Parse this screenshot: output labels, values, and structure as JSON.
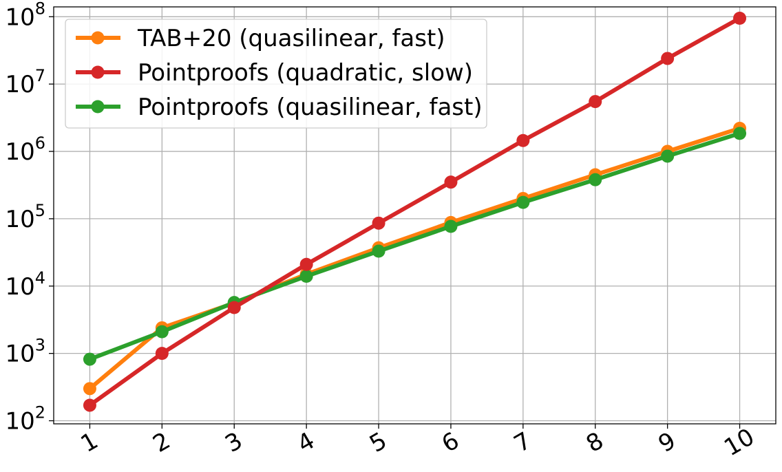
{
  "chart_data": {
    "type": "line",
    "title": "",
    "xlabel": "",
    "ylabel": "",
    "x": [
      1,
      2,
      3,
      4,
      5,
      6,
      7,
      8,
      9,
      10
    ],
    "x_tick_labels": [
      "1",
      "2",
      "3",
      "4",
      "5",
      "6",
      "7",
      "8",
      "9",
      "10"
    ],
    "y_scale": "log",
    "ylim": [
      90,
      140000000
    ],
    "y_ticks": [
      {
        "value": 100,
        "base": "10",
        "exp": "2"
      },
      {
        "value": 1000,
        "base": "10",
        "exp": "3"
      },
      {
        "value": 10000,
        "base": "10",
        "exp": "4"
      },
      {
        "value": 100000,
        "base": "10",
        "exp": "5"
      },
      {
        "value": 1000000,
        "base": "10",
        "exp": "6"
      },
      {
        "value": 10000000,
        "base": "10",
        "exp": "7"
      },
      {
        "value": 100000000,
        "base": "10",
        "exp": "8"
      }
    ],
    "grid": true,
    "legend_position": "top-left",
    "series": [
      {
        "name": "TAB+20 (quasilinear, fast)",
        "color": "#ff7f0e",
        "values": [
          300,
          2400,
          5600,
          15000,
          37000,
          88000,
          200000,
          450000,
          1000000,
          2200000
        ]
      },
      {
        "name": "Pointproofs (quadratic, slow)",
        "color": "#d62728",
        "values": [
          170,
          1000,
          4800,
          21000,
          86000,
          350000,
          1450000,
          5500000,
          24000000,
          95000000
        ]
      },
      {
        "name": "Pointproofs (quasilinear, fast)",
        "color": "#2ca02c",
        "values": [
          820,
          2100,
          5700,
          14000,
          33000,
          77000,
          175000,
          380000,
          850000,
          1850000
        ]
      }
    ]
  }
}
